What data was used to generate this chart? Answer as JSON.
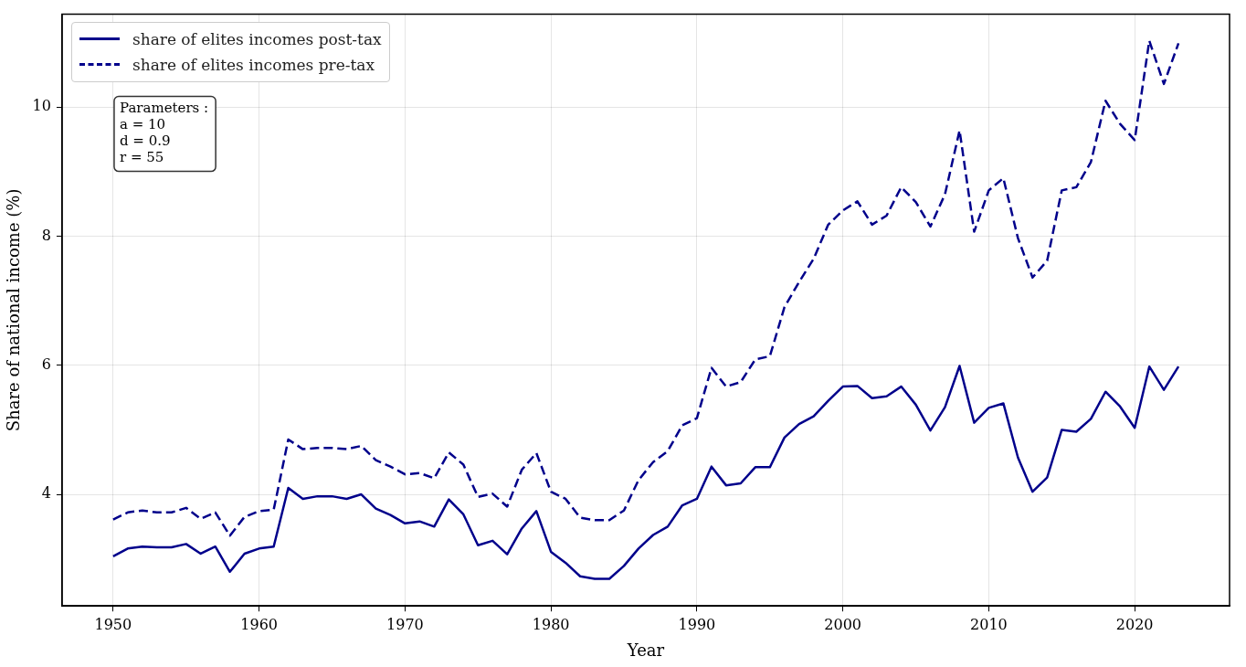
{
  "chart_data": {
    "type": "line",
    "xlabel": "Year",
    "ylabel": "Share of national income (%)",
    "annotations": [
      "Parameters :\na = 10\nd = 0.9\nr = 55"
    ],
    "x": [
      1950,
      1951,
      1952,
      1953,
      1954,
      1955,
      1956,
      1957,
      1958,
      1959,
      1960,
      1961,
      1962,
      1963,
      1964,
      1965,
      1966,
      1967,
      1968,
      1969,
      1970,
      1971,
      1972,
      1973,
      1974,
      1975,
      1976,
      1977,
      1978,
      1979,
      1980,
      1981,
      1982,
      1983,
      1984,
      1985,
      1986,
      1987,
      1988,
      1989,
      1990,
      1991,
      1992,
      1993,
      1994,
      1995,
      1996,
      1997,
      1998,
      1999,
      2000,
      2001,
      2002,
      2003,
      2004,
      2005,
      2006,
      2007,
      2008,
      2009,
      2010,
      2011,
      2012,
      2013,
      2014,
      2015,
      2016,
      2017,
      2018,
      2019,
      2020,
      2021,
      2022,
      2023
    ],
    "series": [
      {
        "name": "share of elites incomes post-tax",
        "color": "#00008b",
        "line_style": "solid",
        "values": [
          3.04,
          3.16,
          3.19,
          3.18,
          3.18,
          3.23,
          3.08,
          3.19,
          2.8,
          3.08,
          3.16,
          3.19,
          4.1,
          3.93,
          3.97,
          3.97,
          3.93,
          4.0,
          3.78,
          3.68,
          3.55,
          3.58,
          3.5,
          3.92,
          3.69,
          3.21,
          3.28,
          3.07,
          3.47,
          3.74,
          3.11,
          2.94,
          2.73,
          2.69,
          2.69,
          2.89,
          3.16,
          3.37,
          3.5,
          3.83,
          3.93,
          4.43,
          4.14,
          4.17,
          4.42,
          4.42,
          4.88,
          5.09,
          5.21,
          5.45,
          5.67,
          5.68,
          5.49,
          5.52,
          5.67,
          5.39,
          4.99,
          5.35,
          5.99,
          5.11,
          5.34,
          5.41,
          4.57,
          4.04,
          4.26,
          5.0,
          4.97,
          5.17,
          5.59,
          5.36,
          5.03,
          5.98,
          5.62,
          5.98
        ]
      },
      {
        "name": "share of elites incomes pre-tax",
        "color": "#00008b",
        "line_style": "dashed",
        "values": [
          3.61,
          3.72,
          3.75,
          3.72,
          3.72,
          3.79,
          3.62,
          3.72,
          3.36,
          3.65,
          3.74,
          3.76,
          4.85,
          4.7,
          4.72,
          4.72,
          4.7,
          4.75,
          4.53,
          4.43,
          4.31,
          4.33,
          4.25,
          4.65,
          4.46,
          3.96,
          4.01,
          3.81,
          4.38,
          4.64,
          4.04,
          3.93,
          3.64,
          3.6,
          3.6,
          3.75,
          4.22,
          4.5,
          4.67,
          5.07,
          5.18,
          5.96,
          5.67,
          5.74,
          6.09,
          6.14,
          6.9,
          7.29,
          7.65,
          8.18,
          8.4,
          8.54,
          8.18,
          8.32,
          8.76,
          8.53,
          8.15,
          8.65,
          9.64,
          8.07,
          8.71,
          8.9,
          7.97,
          7.36,
          7.62,
          8.71,
          8.76,
          9.15,
          10.1,
          9.74,
          9.49,
          11.03,
          10.36,
          10.99
        ]
      }
    ],
    "xlim": [
      1946.5,
      2026.5
    ],
    "ylim": [
      2.27,
      11.44
    ],
    "xticks": [
      1950,
      1960,
      1970,
      1980,
      1990,
      2000,
      2010,
      2020
    ],
    "yticks": [
      4,
      6,
      8,
      10
    ],
    "grid": true,
    "legend": "top left",
    "marker": "none"
  }
}
